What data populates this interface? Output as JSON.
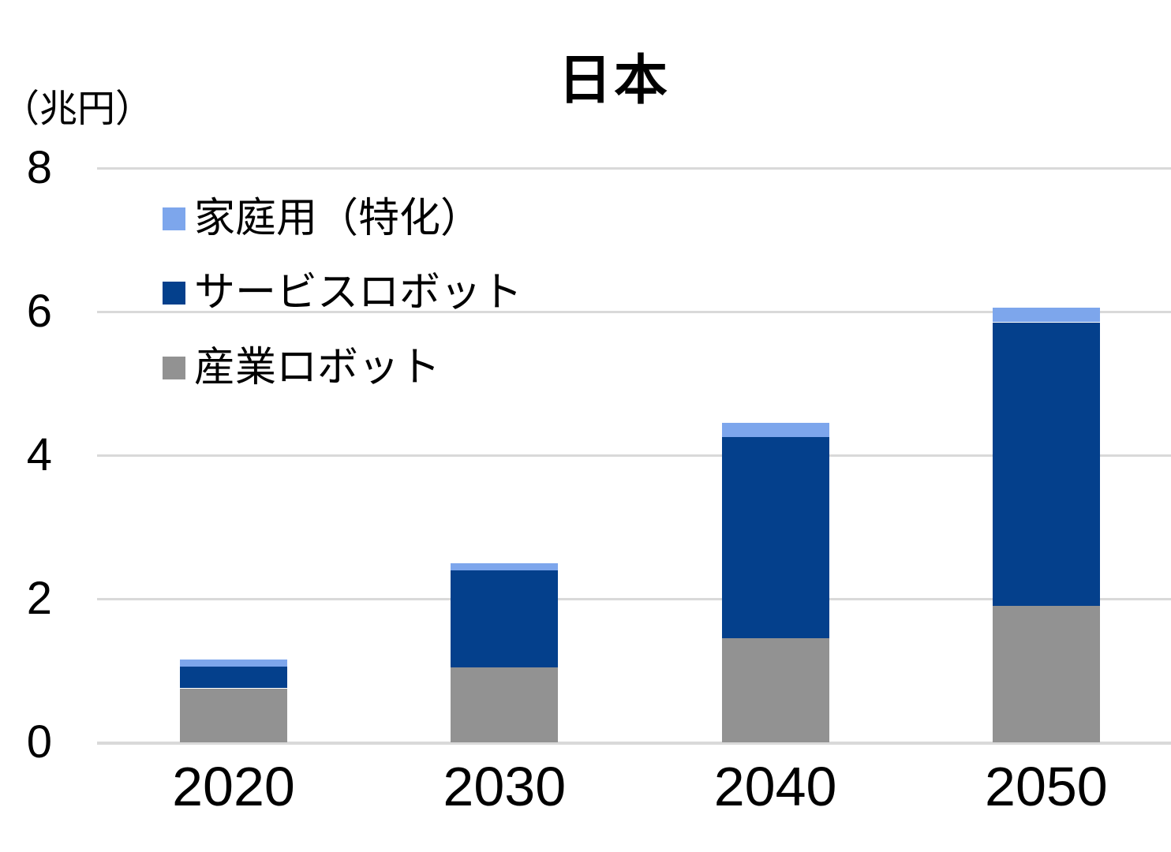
{
  "chart_data": {
    "type": "bar",
    "stacked": true,
    "title": "日本",
    "unit_label": "（兆円）",
    "categories": [
      "2020",
      "2030",
      "2040",
      "2050"
    ],
    "series": [
      {
        "name": "産業ロボット",
        "color": "#929292",
        "values": [
          0.75,
          1.05,
          1.45,
          1.9
        ]
      },
      {
        "name": "サービスロボット",
        "color": "#04408C",
        "values": [
          0.3,
          1.35,
          2.8,
          3.95
        ]
      },
      {
        "name": "家庭用（特化）",
        "color": "#7DA6EC",
        "values": [
          0.1,
          0.1,
          0.2,
          0.2
        ]
      }
    ],
    "totals": [
      1.15,
      2.5,
      4.45,
      6.05
    ],
    "ylim": [
      0,
      8
    ],
    "yticks": [
      0,
      2,
      4,
      6,
      8
    ],
    "grid": true,
    "gridline_color": "#D9D9D9",
    "text_color": "#000000",
    "background_color": "#FFFFFF",
    "legend_position": "inside-top-left",
    "legend_order": [
      "家庭用（特化）",
      "サービスロボット",
      "産業ロボット"
    ]
  }
}
